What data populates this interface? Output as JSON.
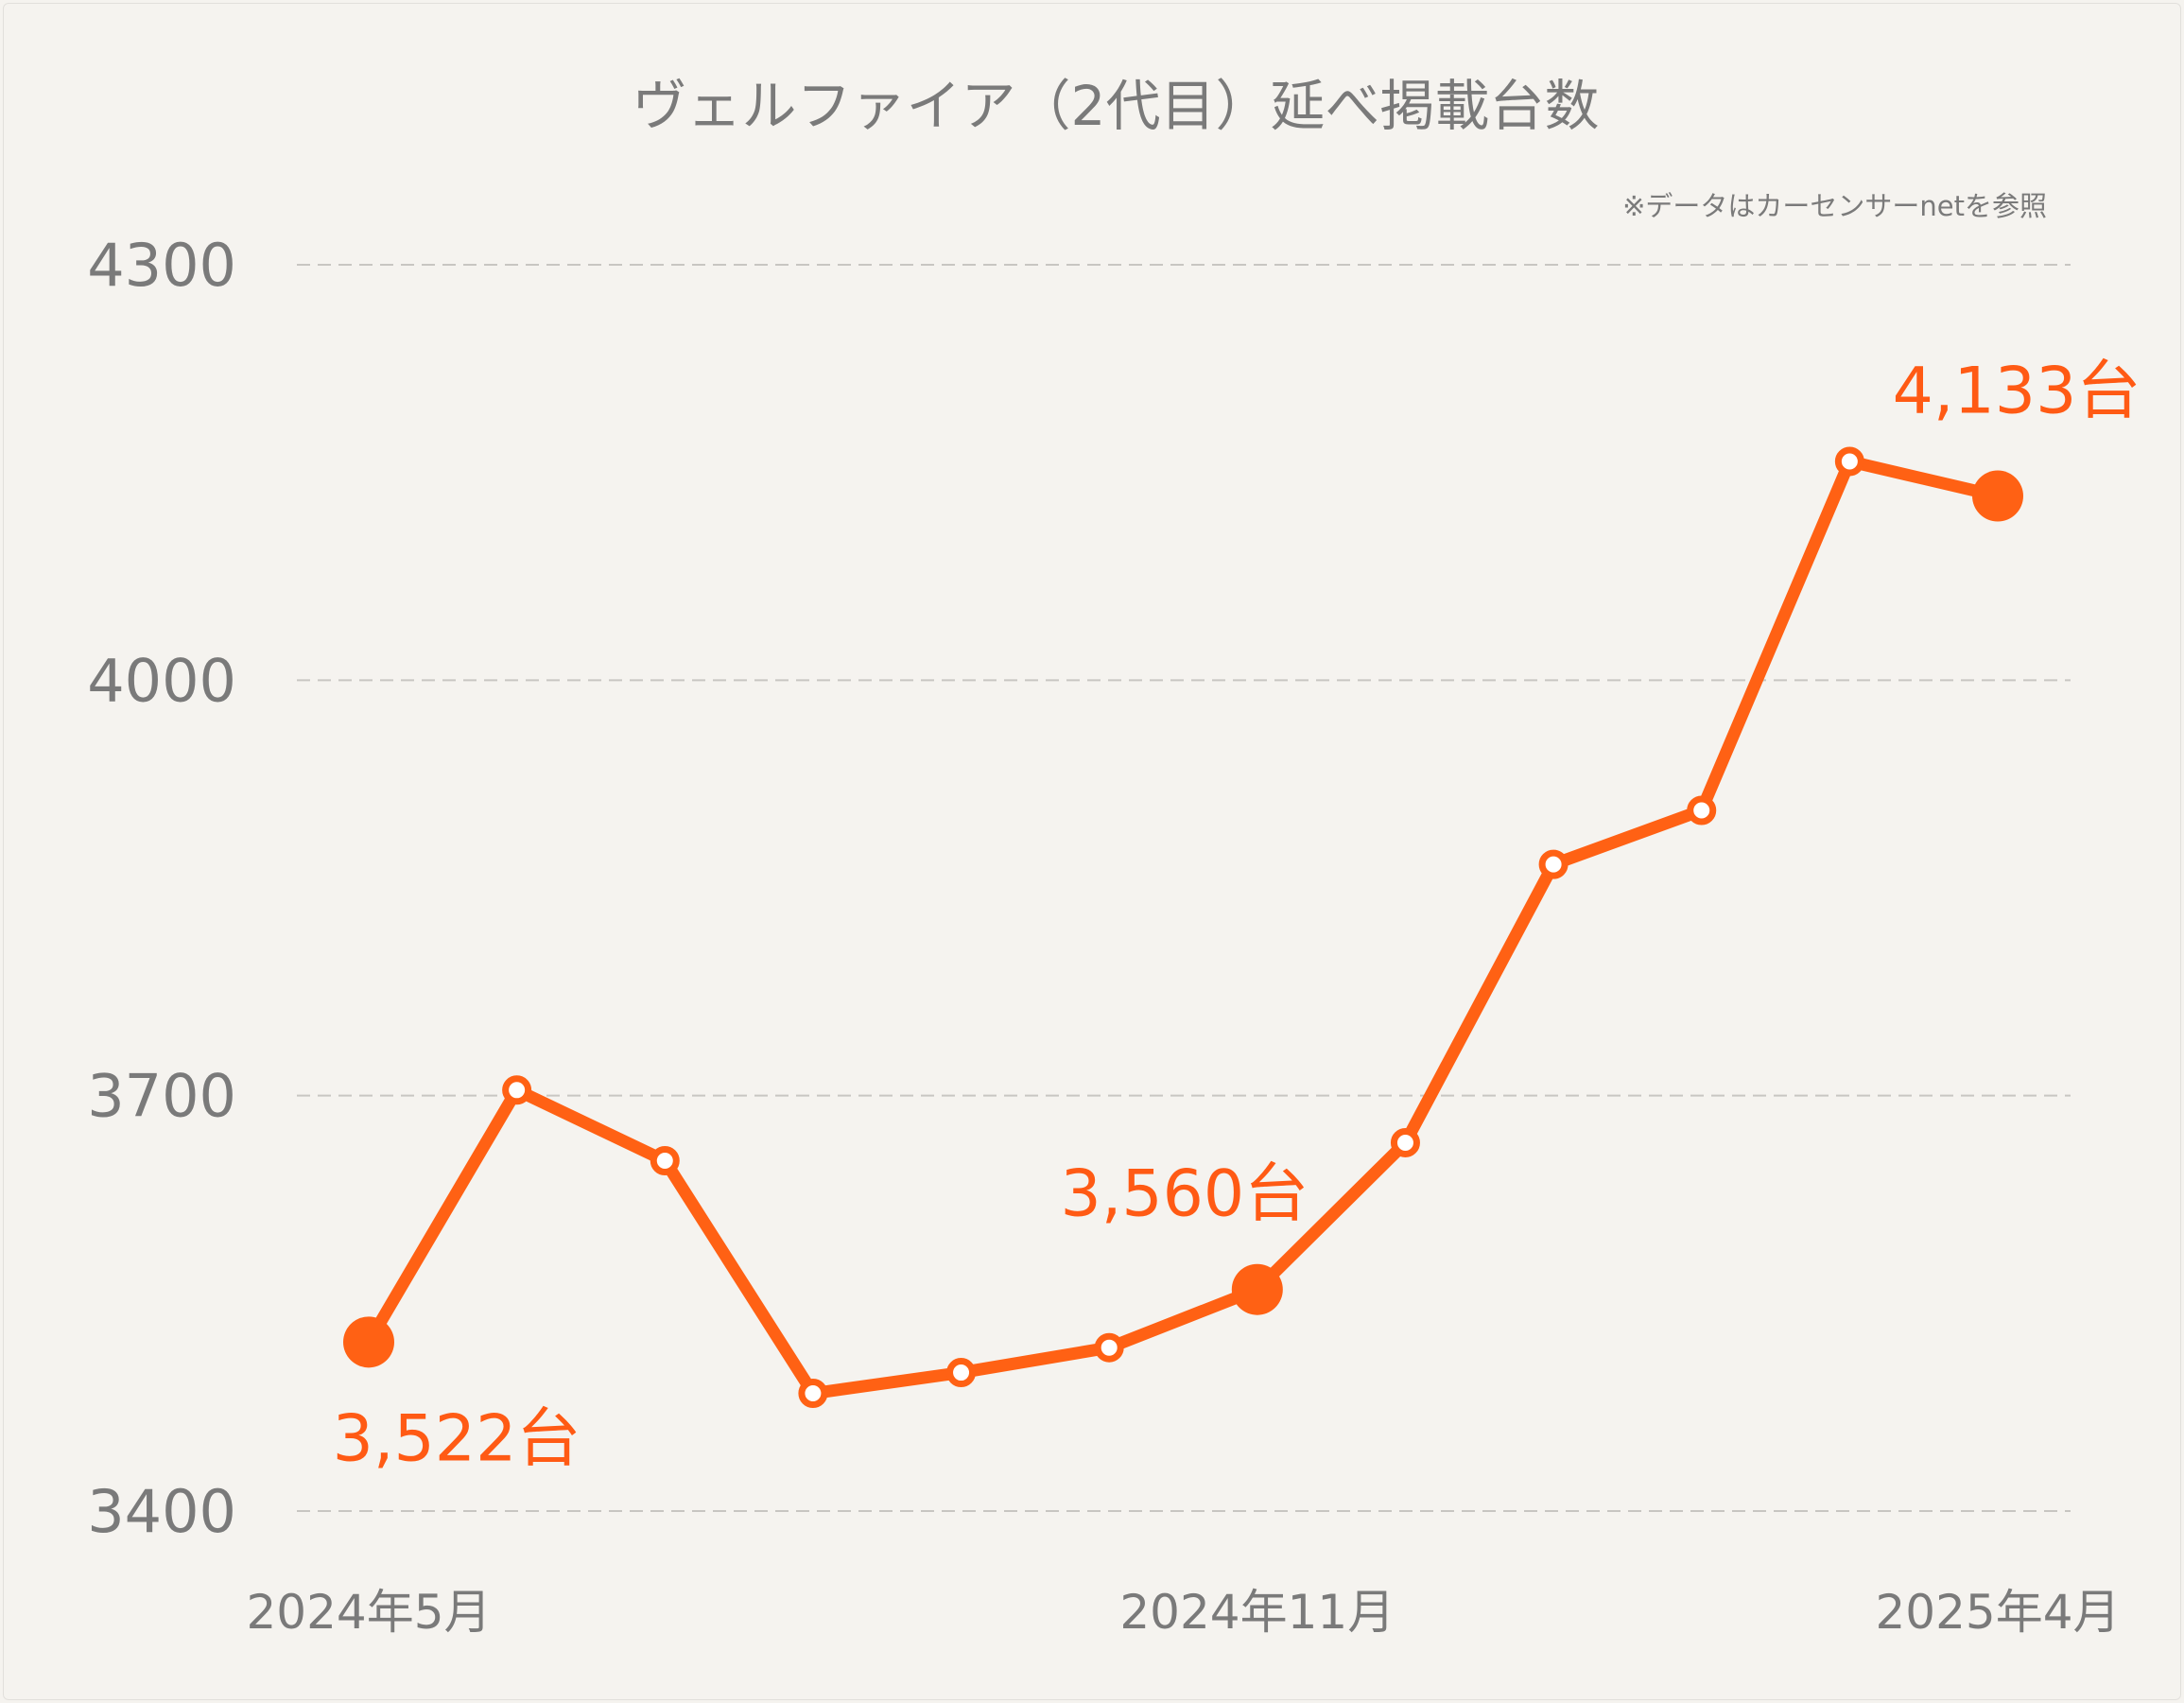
{
  "chart_data": {
    "type": "line",
    "title": "ヴェルファイア（2代目）延べ掲載台数",
    "note": "※データはカーセンサーnetを参照",
    "x": [
      "2024-05",
      "2024-06",
      "2024-07",
      "2024-08",
      "2024-09",
      "2024-10",
      "2024-11",
      "2024-12",
      "2025-01",
      "2025-02",
      "2025-03",
      "2025-04"
    ],
    "x_tick_labels": [
      {
        "index": 0,
        "label": "2024年5月"
      },
      {
        "index": 6,
        "label": "2024年11月"
      },
      {
        "index": 11,
        "label": "2025年4月"
      }
    ],
    "series": [
      {
        "name": "延べ掲載台数",
        "values": [
          3522,
          3704,
          3653,
          3485,
          3500,
          3518,
          3560,
          3666,
          3867,
          3906,
          4158,
          4133
        ]
      }
    ],
    "highlighted": [
      {
        "index": 0,
        "label": "3,522台",
        "placement": "below"
      },
      {
        "index": 6,
        "label": "3,560台",
        "placement": "above-left"
      },
      {
        "index": 11,
        "label": "4,133台",
        "placement": "above"
      }
    ],
    "y_ticks": [
      3400,
      3700,
      4000,
      4300
    ],
    "ylim": [
      3400,
      4300
    ],
    "grid": "horizontal-dashed",
    "colors": {
      "line": "#ff6114",
      "label": "#ff5a14",
      "text": "#7a7a7a",
      "grid": "#c8c6c2"
    }
  }
}
